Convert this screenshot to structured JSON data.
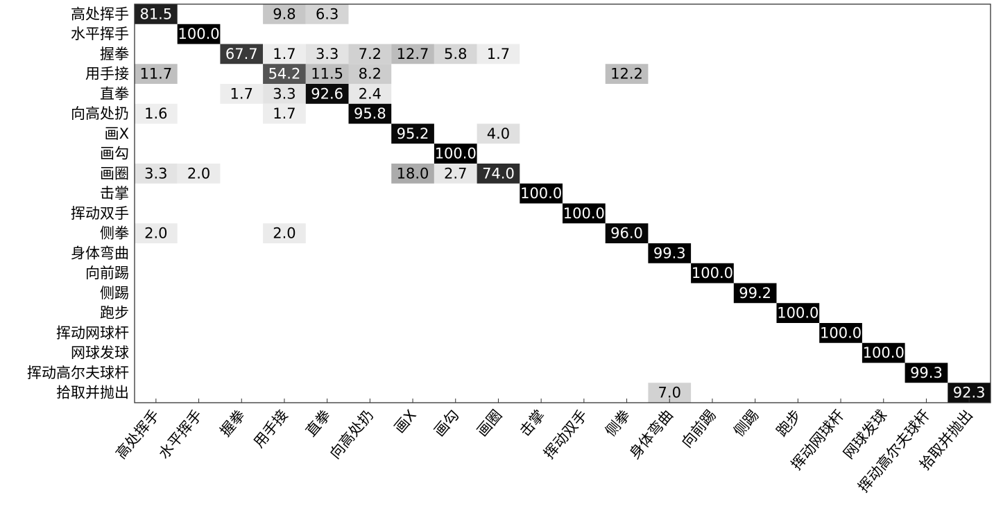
{
  "chart_data": {
    "type": "heatmap",
    "title": "",
    "xlabel": "",
    "ylabel": "",
    "labels": [
      "高处挥手",
      "水平挥手",
      "握拳",
      "用手接",
      "直拳",
      "向高处扔",
      "画X",
      "画勾",
      "画圈",
      "击掌",
      "挥动双手",
      "侧拳",
      "身体弯曲",
      "向前踢",
      "侧踢",
      "跑步",
      "挥动网球杆",
      "网球发球",
      "挥动高尔夫球杆",
      "拾取并抛出"
    ],
    "value_range": [
      0,
      100
    ],
    "colormap": "white-to-black",
    "cells": [
      {
        "row": 0,
        "col": 0,
        "value": 81.5
      },
      {
        "row": 0,
        "col": 3,
        "value": 9.8
      },
      {
        "row": 0,
        "col": 4,
        "value": 6.3
      },
      {
        "row": 1,
        "col": 1,
        "value": 100.0
      },
      {
        "row": 2,
        "col": 2,
        "value": 67.7
      },
      {
        "row": 2,
        "col": 3,
        "value": 1.7
      },
      {
        "row": 2,
        "col": 4,
        "value": 3.3
      },
      {
        "row": 2,
        "col": 5,
        "value": 7.2
      },
      {
        "row": 2,
        "col": 6,
        "value": 12.7
      },
      {
        "row": 2,
        "col": 7,
        "value": 5.8
      },
      {
        "row": 2,
        "col": 8,
        "value": 1.7
      },
      {
        "row": 3,
        "col": 0,
        "value": 11.7
      },
      {
        "row": 3,
        "col": 3,
        "value": 54.2
      },
      {
        "row": 3,
        "col": 4,
        "value": 11.5
      },
      {
        "row": 3,
        "col": 5,
        "value": 8.2
      },
      {
        "row": 3,
        "col": 11,
        "value": 12.2
      },
      {
        "row": 4,
        "col": 2,
        "value": 1.7
      },
      {
        "row": 4,
        "col": 3,
        "value": 3.3
      },
      {
        "row": 4,
        "col": 4,
        "value": 92.6
      },
      {
        "row": 4,
        "col": 5,
        "value": 2.4
      },
      {
        "row": 5,
        "col": 0,
        "value": 1.6
      },
      {
        "row": 5,
        "col": 3,
        "value": 1.7
      },
      {
        "row": 5,
        "col": 5,
        "value": 95.8
      },
      {
        "row": 6,
        "col": 6,
        "value": 95.2
      },
      {
        "row": 6,
        "col": 8,
        "value": 4.0
      },
      {
        "row": 7,
        "col": 7,
        "value": 100.0
      },
      {
        "row": 8,
        "col": 0,
        "value": 3.3
      },
      {
        "row": 8,
        "col": 1,
        "value": 2.0
      },
      {
        "row": 8,
        "col": 6,
        "value": 18.0
      },
      {
        "row": 8,
        "col": 7,
        "value": 2.7
      },
      {
        "row": 8,
        "col": 8,
        "value": 74.0
      },
      {
        "row": 9,
        "col": 9,
        "value": 100.0
      },
      {
        "row": 10,
        "col": 10,
        "value": 100.0
      },
      {
        "row": 11,
        "col": 0,
        "value": 2.0
      },
      {
        "row": 11,
        "col": 3,
        "value": 2.0
      },
      {
        "row": 11,
        "col": 11,
        "value": 96.0
      },
      {
        "row": 12,
        "col": 12,
        "value": 99.3
      },
      {
        "row": 13,
        "col": 13,
        "value": 100.0
      },
      {
        "row": 14,
        "col": 14,
        "value": 99.2
      },
      {
        "row": 15,
        "col": 15,
        "value": 100.0
      },
      {
        "row": 16,
        "col": 16,
        "value": 100.0
      },
      {
        "row": 17,
        "col": 17,
        "value": 100.0
      },
      {
        "row": 18,
        "col": 18,
        "value": 99.3
      },
      {
        "row": 19,
        "col": 12,
        "value": 7.0
      },
      {
        "row": 19,
        "col": 19,
        "value": 92.3
      }
    ]
  }
}
